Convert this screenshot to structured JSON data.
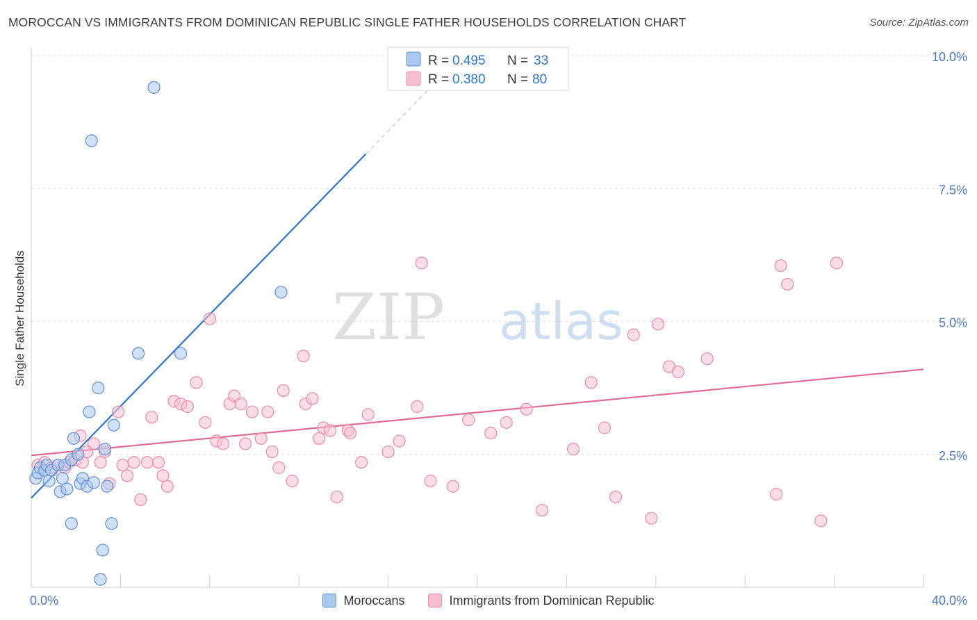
{
  "title": "MOROCCAN VS IMMIGRANTS FROM DOMINICAN REPUBLIC SINGLE FATHER HOUSEHOLDS CORRELATION CHART",
  "source": "Source: ZipAtlas.com",
  "watermark": {
    "zip": "ZIP",
    "atlas": "atlas"
  },
  "colors": {
    "blue_fill": "#a9c8ef",
    "blue_stroke": "#5e8fd6",
    "blue_line": "#2b74d0",
    "pink_fill": "#f6bfd0",
    "pink_stroke": "#e98aa8",
    "pink_line": "#e06a96",
    "tick_text": "#4a78c2",
    "grid": "#dddddd"
  },
  "legend": {
    "rows": [
      {
        "r_label": "R =",
        "r_value": "0.495",
        "n_label": "N =",
        "n_value": "33"
      },
      {
        "r_label": "R =",
        "r_value": "0.380",
        "n_label": "N =",
        "n_value": "80"
      }
    ]
  },
  "chart_data": {
    "type": "scatter",
    "ylabel": "Single Father Households",
    "xlim": [
      0,
      40
    ],
    "ylim": [
      0,
      10
    ],
    "x_tick_labels": [
      {
        "value": 0,
        "label": "0.0%"
      },
      {
        "value": 40,
        "label": "40.0%"
      }
    ],
    "y_tick_labels": [
      {
        "value": 2.5,
        "label": "2.5%"
      },
      {
        "value": 5,
        "label": "5.0%"
      },
      {
        "value": 7.5,
        "label": "7.5%"
      },
      {
        "value": 10,
        "label": "10.0%"
      }
    ],
    "grid": true,
    "legend_position": "top-center",
    "series": [
      {
        "name": "Moroccans",
        "r": 0.495,
        "n": 33,
        "trend": {
          "x0": 0,
          "y0": 1.68,
          "x1": 15,
          "y1": 8.15,
          "dash_to_x": 18.7,
          "dash_to_y": 9.75
        },
        "points": [
          [
            0.2,
            2.05
          ],
          [
            0.3,
            2.15
          ],
          [
            0.4,
            2.25
          ],
          [
            0.6,
            2.2
          ],
          [
            0.7,
            2.3
          ],
          [
            0.8,
            2.0
          ],
          [
            0.9,
            2.2
          ],
          [
            1.2,
            2.3
          ],
          [
            1.4,
            2.05
          ],
          [
            1.3,
            1.8
          ],
          [
            1.5,
            2.3
          ],
          [
            1.6,
            1.85
          ],
          [
            1.8,
            2.4
          ],
          [
            1.9,
            2.8
          ],
          [
            2.1,
            2.5
          ],
          [
            2.2,
            1.95
          ],
          [
            2.3,
            2.05
          ],
          [
            2.5,
            1.9
          ],
          [
            2.8,
            1.97
          ],
          [
            1.8,
            1.2
          ],
          [
            2.6,
            3.3
          ],
          [
            3.0,
            3.75
          ],
          [
            3.3,
            2.6
          ],
          [
            3.4,
            1.9
          ],
          [
            3.6,
            1.2
          ],
          [
            3.7,
            3.05
          ],
          [
            3.2,
            0.7
          ],
          [
            3.1,
            0.15
          ],
          [
            4.8,
            4.4
          ],
          [
            6.7,
            4.4
          ],
          [
            11.2,
            5.55
          ],
          [
            5.5,
            9.4
          ],
          [
            2.7,
            8.4
          ]
        ]
      },
      {
        "name": "Immigrants from Dominican Republic",
        "r": 0.38,
        "n": 80,
        "trend": {
          "x0": 0,
          "y0": 2.48,
          "x1": 40,
          "y1": 4.1
        },
        "points": [
          [
            0.3,
            2.3
          ],
          [
            0.6,
            2.35
          ],
          [
            0.9,
            2.25
          ],
          [
            1.2,
            2.3
          ],
          [
            1.5,
            2.25
          ],
          [
            1.7,
            2.35
          ],
          [
            2.0,
            2.4
          ],
          [
            2.3,
            2.35
          ],
          [
            2.2,
            2.85
          ],
          [
            2.5,
            2.55
          ],
          [
            2.8,
            2.7
          ],
          [
            3.1,
            2.35
          ],
          [
            3.3,
            2.55
          ],
          [
            3.5,
            1.95
          ],
          [
            3.9,
            3.3
          ],
          [
            4.1,
            2.3
          ],
          [
            4.3,
            2.1
          ],
          [
            4.6,
            2.35
          ],
          [
            4.9,
            1.65
          ],
          [
            5.2,
            2.35
          ],
          [
            5.4,
            3.2
          ],
          [
            5.7,
            2.35
          ],
          [
            5.9,
            2.1
          ],
          [
            6.1,
            1.9
          ],
          [
            6.4,
            3.5
          ],
          [
            6.7,
            3.45
          ],
          [
            7.0,
            3.4
          ],
          [
            7.4,
            3.85
          ],
          [
            7.8,
            3.1
          ],
          [
            8.0,
            5.05
          ],
          [
            8.3,
            2.75
          ],
          [
            8.6,
            2.7
          ],
          [
            8.9,
            3.45
          ],
          [
            9.1,
            3.6
          ],
          [
            9.4,
            3.45
          ],
          [
            9.6,
            2.7
          ],
          [
            9.9,
            3.3
          ],
          [
            10.3,
            2.8
          ],
          [
            10.6,
            3.3
          ],
          [
            10.8,
            2.55
          ],
          [
            11.1,
            2.25
          ],
          [
            11.3,
            3.7
          ],
          [
            11.7,
            2.0
          ],
          [
            12.2,
            4.35
          ],
          [
            12.3,
            3.45
          ],
          [
            12.6,
            3.55
          ],
          [
            12.9,
            2.8
          ],
          [
            13.1,
            3.0
          ],
          [
            13.4,
            2.95
          ],
          [
            13.7,
            1.7
          ],
          [
            14.2,
            2.95
          ],
          [
            14.3,
            2.9
          ],
          [
            14.8,
            2.35
          ],
          [
            15.1,
            3.25
          ],
          [
            16.0,
            2.55
          ],
          [
            16.5,
            2.75
          ],
          [
            17.3,
            3.4
          ],
          [
            17.5,
            6.1
          ],
          [
            17.9,
            2.0
          ],
          [
            18.9,
            1.9
          ],
          [
            19.6,
            3.15
          ],
          [
            20.6,
            2.9
          ],
          [
            21.3,
            3.1
          ],
          [
            22.2,
            3.35
          ],
          [
            22.9,
            1.45
          ],
          [
            24.3,
            2.6
          ],
          [
            25.1,
            3.85
          ],
          [
            25.7,
            3.0
          ],
          [
            26.2,
            1.7
          ],
          [
            27.0,
            4.75
          ],
          [
            27.8,
            1.3
          ],
          [
            28.1,
            4.95
          ],
          [
            28.6,
            4.15
          ],
          [
            29.0,
            4.05
          ],
          [
            30.3,
            4.3
          ],
          [
            33.4,
            1.75
          ],
          [
            33.6,
            6.05
          ],
          [
            33.9,
            5.7
          ],
          [
            35.4,
            1.25
          ],
          [
            36.1,
            6.1
          ]
        ]
      }
    ]
  }
}
